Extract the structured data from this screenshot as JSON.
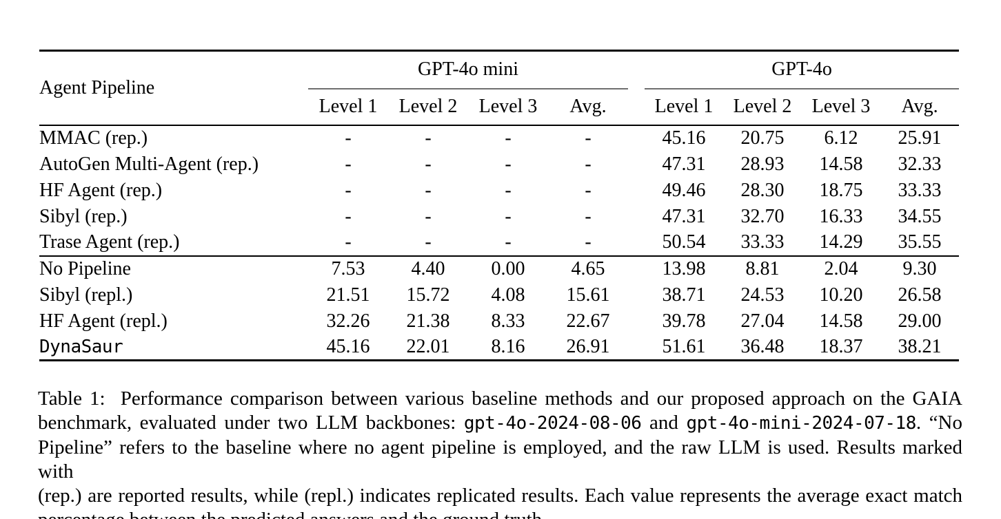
{
  "colors": {
    "text": "#000000",
    "background": "#ffffff",
    "rule": "#000000",
    "cmidrule": "#6e6e6e"
  },
  "table": {
    "corner_header": "Agent Pipeline",
    "groups": [
      {
        "label": "GPT-4o mini"
      },
      {
        "label": "GPT-4o"
      }
    ],
    "sub_headers": [
      "Level 1",
      "Level 2",
      "Level 3",
      "Avg."
    ],
    "sections": [
      {
        "rows": [
          {
            "name": "MMAC (rep.)",
            "mono": false,
            "values": [
              {
                "v": "-"
              },
              {
                "v": "-"
              },
              {
                "v": "-"
              },
              {
                "v": "-"
              },
              {
                "v": "45.16"
              },
              {
                "v": "20.75"
              },
              {
                "v": "6.12"
              },
              {
                "v": "25.91"
              }
            ]
          },
          {
            "name": "AutoGen Multi-Agent (rep.)",
            "mono": false,
            "values": [
              {
                "v": "-"
              },
              {
                "v": "-"
              },
              {
                "v": "-"
              },
              {
                "v": "-"
              },
              {
                "v": "47.31"
              },
              {
                "v": "28.93"
              },
              {
                "v": "14.58"
              },
              {
                "v": "32.33"
              }
            ]
          },
          {
            "name": "HF Agent (rep.)",
            "mono": false,
            "values": [
              {
                "v": "-"
              },
              {
                "v": "-"
              },
              {
                "v": "-"
              },
              {
                "v": "-"
              },
              {
                "v": "49.46"
              },
              {
                "v": "28.30"
              },
              {
                "v": "18.75"
              },
              {
                "v": "33.33"
              }
            ]
          },
          {
            "name": "Sibyl (rep.)",
            "mono": false,
            "values": [
              {
                "v": "-"
              },
              {
                "v": "-"
              },
              {
                "v": "-"
              },
              {
                "v": "-"
              },
              {
                "v": "47.31"
              },
              {
                "v": "32.70"
              },
              {
                "v": "16.33"
              },
              {
                "v": "34.55"
              }
            ]
          },
          {
            "name": "Trase Agent (rep.)",
            "mono": false,
            "values": [
              {
                "v": "-"
              },
              {
                "v": "-"
              },
              {
                "v": "-"
              },
              {
                "v": "-"
              },
              {
                "v": "50.54"
              },
              {
                "v": "33.33"
              },
              {
                "v": "14.29"
              },
              {
                "v": "35.55"
              }
            ]
          }
        ]
      },
      {
        "rows": [
          {
            "name": "No Pipeline",
            "mono": false,
            "values": [
              {
                "v": "7.53"
              },
              {
                "v": "4.40"
              },
              {
                "v": "0.00"
              },
              {
                "v": "4.65"
              },
              {
                "v": "13.98"
              },
              {
                "v": "8.81"
              },
              {
                "v": "2.04"
              },
              {
                "v": "9.30"
              }
            ]
          },
          {
            "name": "Sibyl (repl.)",
            "mono": false,
            "values": [
              {
                "v": "21.51"
              },
              {
                "v": "15.72"
              },
              {
                "v": "4.08"
              },
              {
                "v": "15.61"
              },
              {
                "v": "38.71"
              },
              {
                "v": "24.53"
              },
              {
                "v": "10.20"
              },
              {
                "v": "26.58"
              }
            ]
          },
          {
            "name": "HF Agent (repl.)",
            "mono": false,
            "values": [
              {
                "v": "32.26"
              },
              {
                "v": "21.38"
              },
              {
                "v": "8.33",
                "b": true
              },
              {
                "v": "22.67"
              },
              {
                "v": "39.78"
              },
              {
                "v": "27.04"
              },
              {
                "v": "14.58"
              },
              {
                "v": "29.00"
              }
            ]
          },
          {
            "name": "DynaSaur",
            "mono": true,
            "values": [
              {
                "v": "45.16",
                "b": true
              },
              {
                "v": "22.01",
                "b": true
              },
              {
                "v": "8.16"
              },
              {
                "v": "26.91",
                "b": true
              },
              {
                "v": "51.61",
                "b": true
              },
              {
                "v": "36.48",
                "b": true
              },
              {
                "v": "18.37",
                "b": true
              },
              {
                "v": "38.21",
                "b": true
              }
            ]
          }
        ]
      }
    ]
  },
  "caption": {
    "lines": [
      {
        "segments": [
          {
            "t": "Table 1:  Performance comparison between various baseline methods and our proposed approach on the GAIA"
          }
        ]
      },
      {
        "segments": [
          {
            "t": "benchmark, evaluated under two LLM backbones: "
          },
          {
            "t": "gpt-4o-2024-08-06",
            "mono": true
          },
          {
            "t": " and "
          },
          {
            "t": "gpt-4o-mini-2024-07-18",
            "mono": true
          },
          {
            "t": ". “No"
          }
        ]
      },
      {
        "segments": [
          {
            "t": "Pipeline” refers to the baseline where no agent pipeline is employed, and the raw LLM is used. Results marked with"
          }
        ]
      },
      {
        "segments": [
          {
            "t": "(rep.) are reported results, while (repl.) indicates replicated results. Each value represents the average exact match"
          }
        ]
      },
      {
        "last": true,
        "segments": [
          {
            "t": "percentage between the predicted answers and the ground truth."
          }
        ]
      }
    ]
  }
}
